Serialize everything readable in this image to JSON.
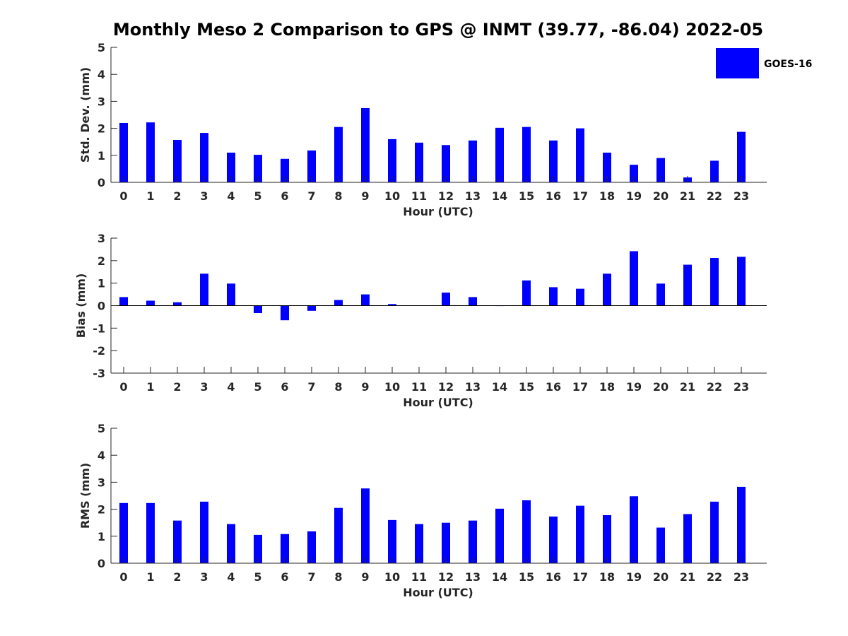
{
  "figure": {
    "title": "Monthly Meso 2 Comparison to GPS @ INMT (39.77, -86.04) 2022-05"
  },
  "legend": {
    "label": "GOES-16",
    "color": "#0000ff",
    "placement": "top-right"
  },
  "chart_data": [
    {
      "type": "bar",
      "xlabel": "Hour (UTC)",
      "ylabel": "Std. Dev. (mm)",
      "ylim": [
        0,
        5
      ],
      "yticks": [
        0,
        1,
        2,
        3,
        4,
        5
      ],
      "categories": [
        "0",
        "1",
        "2",
        "3",
        "4",
        "5",
        "6",
        "7",
        "8",
        "9",
        "10",
        "11",
        "12",
        "13",
        "14",
        "15",
        "16",
        "17",
        "18",
        "19",
        "20",
        "21",
        "22",
        "23"
      ],
      "series": [
        {
          "name": "GOES-16",
          "color": "#0000ff",
          "values": [
            2.2,
            2.22,
            1.57,
            1.83,
            1.1,
            1.02,
            0.87,
            1.18,
            2.05,
            2.75,
            1.6,
            1.47,
            1.38,
            1.55,
            2.02,
            2.05,
            1.55,
            2.0,
            1.1,
            0.65,
            0.9,
            0.18,
            0.8,
            1.87
          ]
        }
      ]
    },
    {
      "type": "bar",
      "xlabel": "Hour (UTC)",
      "ylabel": "Bias (mm)",
      "ylim": [
        -3,
        3
      ],
      "yticks": [
        -3,
        -2,
        -1,
        0,
        1,
        2,
        3
      ],
      "categories": [
        "0",
        "1",
        "2",
        "3",
        "4",
        "5",
        "6",
        "7",
        "8",
        "9",
        "10",
        "11",
        "12",
        "13",
        "14",
        "15",
        "16",
        "17",
        "18",
        "19",
        "20",
        "21",
        "22",
        "23"
      ],
      "series": [
        {
          "name": "GOES-16",
          "color": "#0000ff",
          "values": [
            0.38,
            0.22,
            0.15,
            1.42,
            0.98,
            -0.33,
            -0.65,
            -0.23,
            0.25,
            0.5,
            0.07,
            0.01,
            0.58,
            0.38,
            0.0,
            1.12,
            0.82,
            0.75,
            1.42,
            2.42,
            0.98,
            1.82,
            2.12,
            2.17
          ]
        }
      ]
    },
    {
      "type": "bar",
      "xlabel": "Hour (UTC)",
      "ylabel": "RMS (mm)",
      "ylim": [
        0,
        5
      ],
      "yticks": [
        0,
        1,
        2,
        3,
        4,
        5
      ],
      "categories": [
        "0",
        "1",
        "2",
        "3",
        "4",
        "5",
        "6",
        "7",
        "8",
        "9",
        "10",
        "11",
        "12",
        "13",
        "14",
        "15",
        "16",
        "17",
        "18",
        "19",
        "20",
        "21",
        "22",
        "23"
      ],
      "series": [
        {
          "name": "GOES-16",
          "color": "#0000ff",
          "values": [
            2.23,
            2.23,
            1.58,
            2.28,
            1.45,
            1.05,
            1.08,
            1.18,
            2.05,
            2.77,
            1.6,
            1.45,
            1.5,
            1.58,
            2.02,
            2.33,
            1.73,
            2.13,
            1.78,
            2.48,
            1.32,
            1.82,
            2.28,
            2.83
          ]
        }
      ]
    }
  ]
}
